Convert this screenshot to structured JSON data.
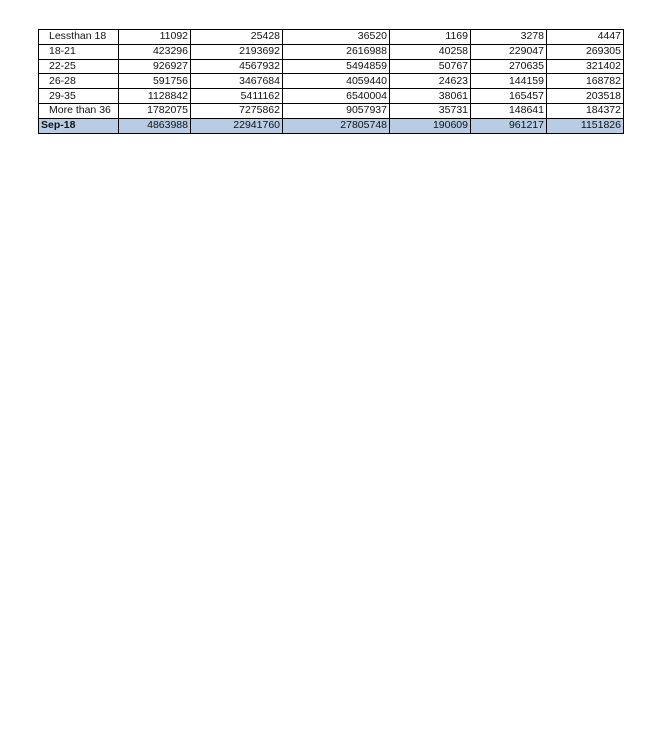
{
  "table": {
    "rows": [
      {
        "label": "Lessthan 18",
        "values": [
          "11092",
          "25428",
          "36520",
          "1169",
          "3278",
          "4447"
        ]
      },
      {
        "label": "18-21",
        "values": [
          "423296",
          "2193692",
          "2616988",
          "40258",
          "229047",
          "269305"
        ]
      },
      {
        "label": "22-25",
        "values": [
          "926927",
          "4567932",
          "5494859",
          "50767",
          "270635",
          "321402"
        ]
      },
      {
        "label": "26-28",
        "values": [
          "591756",
          "3467684",
          "4059440",
          "24623",
          "144159",
          "168782"
        ]
      },
      {
        "label": "29-35",
        "values": [
          "1128842",
          "5411162",
          "6540004",
          "38061",
          "165457",
          "203518"
        ]
      },
      {
        "label": "More than 36",
        "values": [
          "1782075",
          "7275862",
          "9057937",
          "35731",
          "148641",
          "184372"
        ]
      }
    ],
    "total": {
      "label": "Sep-18",
      "values": [
        "4863988",
        "22941760",
        "27805748",
        "190609",
        "961217",
        "1151826"
      ]
    },
    "total_row_color": "#b8cce4"
  }
}
